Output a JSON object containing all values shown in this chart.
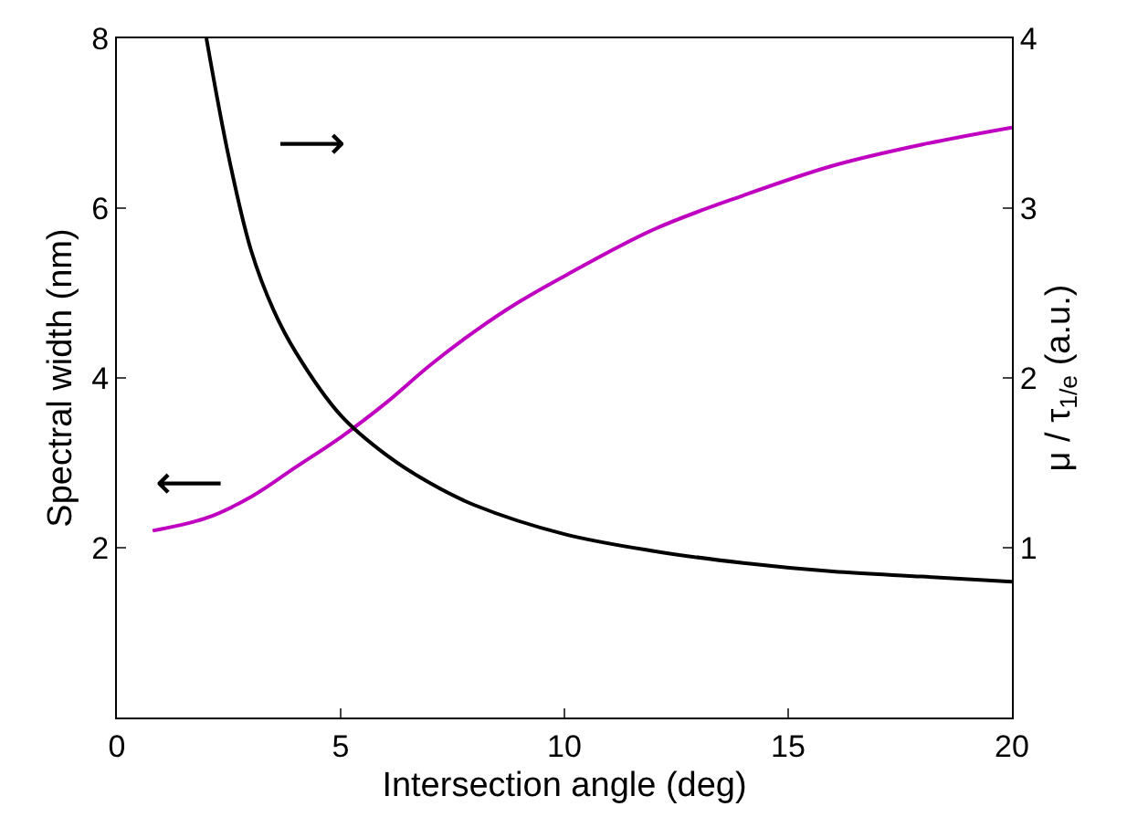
{
  "chart_data": {
    "type": "line",
    "xlabel": "Intersection angle (deg)",
    "ylabel": "Spectral width (nm)",
    "y2label": "μ / τ$_{1/e}$ (a.u.)",
    "xlim": [
      0,
      20
    ],
    "xticks": [
      0,
      5,
      10,
      15,
      20
    ],
    "ylim": [
      0,
      8
    ],
    "yticks": [
      {
        "value": 0,
        "label": null
      },
      2,
      4,
      6,
      8
    ],
    "y2lim": [
      0,
      4
    ],
    "y2ticks": [
      {
        "value": 0,
        "label": null
      },
      1,
      2,
      3,
      4
    ],
    "marker": "none",
    "line_style": "solid",
    "series": [
      {
        "color": "#c000c0",
        "x": [
          0.8,
          2,
          3,
          4,
          5,
          6,
          7,
          8,
          9,
          10,
          12,
          14,
          16,
          18,
          20
        ],
        "values": [
          2.2,
          2.35,
          2.6,
          2.95,
          3.3,
          3.7,
          4.15,
          4.55,
          4.9,
          5.2,
          5.75,
          6.15,
          6.5,
          6.75,
          6.95
        ]
      },
      {
        "color": "#000000",
        "axis": "y2",
        "x": [
          2,
          2.5,
          3,
          3.5,
          4,
          5,
          6,
          7,
          8,
          10,
          12,
          14,
          16,
          18,
          20
        ],
        "values": [
          4.0,
          3.3,
          2.75,
          2.4,
          2.15,
          1.78,
          1.55,
          1.38,
          1.25,
          1.08,
          0.98,
          0.91,
          0.86,
          0.83,
          0.8
        ]
      }
    ],
    "annotations": [
      "⟶",
      "⟵"
    ]
  }
}
